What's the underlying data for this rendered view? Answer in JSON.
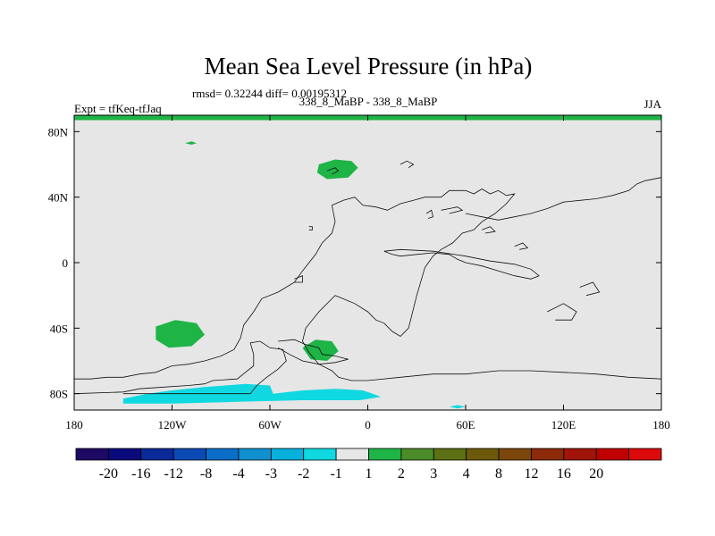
{
  "chart_data": {
    "type": "map",
    "title": "Mean Sea Level Pressure (in hPa)",
    "stats_label": "rmsd= 0.32244 diff= 0.00195312",
    "left_label": "Expt = tfKeq-tfJaq",
    "center_label": "338_8_MaBP - 338_8_MaBP",
    "right_label": "JJA",
    "xlim": [
      -180,
      180
    ],
    "ylim": [
      -90,
      90
    ],
    "x_ticks": [
      {
        "value": -180,
        "label": "180"
      },
      {
        "value": -120,
        "label": "120W"
      },
      {
        "value": -60,
        "label": "60W"
      },
      {
        "value": 0,
        "label": "0"
      },
      {
        "value": 60,
        "label": "60E"
      },
      {
        "value": 120,
        "label": "120E"
      },
      {
        "value": 180,
        "label": "180"
      }
    ],
    "y_ticks": [
      {
        "value": 80,
        "label": "80N"
      },
      {
        "value": 40,
        "label": "40N"
      },
      {
        "value": 0,
        "label": "0"
      },
      {
        "value": -40,
        "label": "40S"
      },
      {
        "value": -80,
        "label": "80S"
      }
    ],
    "background_color": "#e6e6e6",
    "colorbar": {
      "colors": [
        "#1e0a64",
        "#0a0a7c",
        "#0a2a99",
        "#0a4ab4",
        "#0a6ec8",
        "#1090cf",
        "#08b0dc",
        "#10d8e0",
        "#e6e6e6",
        "#1eb446",
        "#4c8c28",
        "#5c7014",
        "#6c5a0a",
        "#7c460a",
        "#8c2a0a",
        "#a0140a",
        "#c00000",
        "#dc0a0a"
      ],
      "labels": [
        "-20",
        "-16",
        "-12",
        "-8",
        "-4",
        "-3",
        "-2",
        "-1",
        "1",
        "2",
        "3",
        "4",
        "8",
        "12",
        "16",
        "20"
      ]
    },
    "fields": [
      {
        "level": "1 to 2",
        "color": "#1eb446",
        "points": [
          [
            -180,
            90
          ],
          [
            180,
            90
          ],
          [
            180,
            87
          ],
          [
            -180,
            87
          ]
        ]
      },
      {
        "level": "1 to 2",
        "color": "#1eb446",
        "points": [
          [
            -112,
            73
          ],
          [
            -108,
            74
          ],
          [
            -105,
            73
          ],
          [
            -108,
            72
          ]
        ]
      },
      {
        "level": "1 to 2",
        "color": "#1eb446",
        "points": [
          [
            -30,
            60
          ],
          [
            -20,
            63
          ],
          [
            -10,
            62
          ],
          [
            -6,
            58
          ],
          [
            -12,
            52
          ],
          [
            -25,
            51
          ],
          [
            -31,
            55
          ]
        ]
      },
      {
        "level": "1 to 2",
        "color": "#1eb446",
        "points": [
          [
            -130,
            -39
          ],
          [
            -118,
            -35
          ],
          [
            -105,
            -37
          ],
          [
            -100,
            -44
          ],
          [
            -108,
            -51
          ],
          [
            -122,
            -52
          ],
          [
            -130,
            -47
          ]
        ]
      },
      {
        "level": "1 to 2",
        "color": "#1eb446",
        "points": [
          [
            -40,
            -52
          ],
          [
            -32,
            -47
          ],
          [
            -22,
            -48
          ],
          [
            -18,
            -54
          ],
          [
            -25,
            -60
          ],
          [
            -35,
            -59
          ]
        ]
      },
      {
        "level": "-2 to -1",
        "color": "#10d8e0",
        "points": [
          [
            -150,
            -83
          ],
          [
            -135,
            -80
          ],
          [
            -120,
            -78
          ],
          [
            -100,
            -76
          ],
          [
            -75,
            -74
          ],
          [
            -60,
            -75
          ],
          [
            -58,
            -80
          ],
          [
            -40,
            -78
          ],
          [
            -20,
            -77
          ],
          [
            -3,
            -78
          ],
          [
            3,
            -80
          ],
          [
            8,
            -82
          ],
          [
            -5,
            -84
          ],
          [
            -40,
            -84
          ],
          [
            -80,
            -85
          ],
          [
            -120,
            -86
          ],
          [
            -150,
            -86
          ]
        ]
      },
      {
        "level": "-2 to -1",
        "color": "#10d8e0",
        "points": [
          [
            50,
            -88
          ],
          [
            55,
            -87
          ],
          [
            60,
            -88
          ],
          [
            55,
            -89
          ]
        ]
      }
    ],
    "coastlines": [
      [
        [
          -180,
          -71
        ],
        [
          -170,
          -71
        ],
        [
          -160,
          -70
        ],
        [
          -150,
          -70
        ],
        [
          -140,
          -68
        ],
        [
          -130,
          -67
        ],
        [
          -120,
          -63
        ],
        [
          -110,
          -62
        ],
        [
          -100,
          -60
        ],
        [
          -90,
          -57
        ],
        [
          -82,
          -53
        ],
        [
          -78,
          -46
        ],
        [
          -76,
          -38
        ],
        [
          -70,
          -30
        ],
        [
          -65,
          -22
        ],
        [
          -55,
          -18
        ],
        [
          -45,
          -12
        ],
        [
          -40,
          -5
        ],
        [
          -32,
          5
        ],
        [
          -28,
          12
        ],
        [
          -22,
          18
        ],
        [
          -20,
          25
        ],
        [
          -22,
          35
        ],
        [
          -15,
          38
        ],
        [
          -8,
          40
        ],
        [
          -3,
          35
        ],
        [
          5,
          34
        ],
        [
          12,
          32
        ],
        [
          20,
          36
        ],
        [
          28,
          38
        ],
        [
          35,
          40
        ],
        [
          45,
          40
        ],
        [
          50,
          44
        ],
        [
          60,
          44
        ],
        [
          65,
          42
        ],
        [
          70,
          45
        ],
        [
          75,
          42
        ],
        [
          80,
          44
        ],
        [
          85,
          41
        ],
        [
          90,
          42
        ],
        [
          85,
          36
        ],
        [
          78,
          30
        ],
        [
          70,
          25
        ],
        [
          65,
          20
        ],
        [
          58,
          18
        ],
        [
          52,
          12
        ],
        [
          45,
          8
        ],
        [
          40,
          4
        ],
        [
          35,
          -3
        ],
        [
          30,
          -20
        ],
        [
          25,
          -40
        ],
        [
          20,
          -45
        ],
        [
          15,
          -42
        ],
        [
          10,
          -37
        ],
        [
          5,
          -35
        ],
        [
          0,
          -30
        ],
        [
          -8,
          -25
        ],
        [
          -20,
          -20
        ],
        [
          -30,
          -30
        ],
        [
          -38,
          -40
        ],
        [
          -40,
          -48
        ],
        [
          -36,
          -55
        ],
        [
          -30,
          -62
        ],
        [
          -22,
          -66
        ],
        [
          -18,
          -70
        ],
        [
          -10,
          -72
        ],
        [
          0,
          -72
        ],
        [
          20,
          -70
        ],
        [
          40,
          -68
        ],
        [
          60,
          -68
        ],
        [
          80,
          -66
        ],
        [
          100,
          -66
        ],
        [
          120,
          -67
        ],
        [
          140,
          -68
        ],
        [
          160,
          -70
        ],
        [
          180,
          -71
        ]
      ],
      [
        [
          -180,
          -80
        ],
        [
          -150,
          -79
        ],
        [
          -140,
          -77
        ],
        [
          -125,
          -76
        ],
        [
          -110,
          -75
        ],
        [
          -100,
          -74
        ],
        [
          -95,
          -72
        ],
        [
          -80,
          -71
        ],
        [
          -75,
          -67
        ],
        [
          -70,
          -63
        ],
        [
          -70,
          -56
        ],
        [
          -72,
          -49
        ],
        [
          -66,
          -48
        ],
        [
          -60,
          -52
        ],
        [
          -52,
          -53
        ],
        [
          -50,
          -60
        ],
        [
          -55,
          -65
        ],
        [
          -62,
          -70
        ],
        [
          -68,
          -75
        ],
        [
          -72,
          -80
        ],
        [
          -90,
          -80
        ],
        [
          -120,
          -80
        ],
        [
          -150,
          -80
        ]
      ],
      [
        [
          -55,
          -48
        ],
        [
          -45,
          -47
        ],
        [
          -38,
          -50
        ],
        [
          -30,
          -52
        ],
        [
          -28,
          -56
        ],
        [
          -20,
          -57
        ],
        [
          -12,
          -59
        ],
        [
          -20,
          -61
        ],
        [
          -30,
          -62
        ],
        [
          -40,
          -60
        ],
        [
          -48,
          -56
        ],
        [
          -55,
          -52
        ]
      ],
      [
        [
          60,
          30
        ],
        [
          70,
          28
        ],
        [
          80,
          26
        ],
        [
          90,
          28
        ],
        [
          100,
          30
        ],
        [
          110,
          33
        ],
        [
          120,
          37
        ],
        [
          130,
          38
        ],
        [
          140,
          39
        ],
        [
          150,
          41
        ],
        [
          160,
          44
        ],
        [
          165,
          48
        ],
        [
          170,
          50
        ],
        [
          180,
          52
        ]
      ],
      [
        [
          10,
          7
        ],
        [
          15,
          5
        ],
        [
          20,
          4
        ],
        [
          30,
          5
        ],
        [
          40,
          6
        ],
        [
          50,
          5
        ],
        [
          55,
          2
        ],
        [
          60,
          0
        ],
        [
          70,
          -2
        ],
        [
          80,
          -5
        ],
        [
          90,
          -8
        ],
        [
          100,
          -10
        ],
        [
          105,
          -8
        ],
        [
          100,
          -4
        ],
        [
          90,
          -1
        ],
        [
          75,
          1
        ],
        [
          60,
          4
        ],
        [
          40,
          7
        ],
        [
          20,
          8
        ],
        [
          10,
          7
        ]
      ],
      [
        [
          -45,
          -10
        ],
        [
          -40,
          -8
        ],
        [
          -40,
          -12
        ],
        [
          -45,
          -12
        ]
      ],
      [
        [
          -25,
          56
        ],
        [
          -20,
          58
        ],
        [
          -18,
          56
        ],
        [
          -22,
          54
        ]
      ],
      [
        [
          -36,
          22
        ],
        [
          -34,
          22
        ],
        [
          -34,
          20
        ],
        [
          -36,
          20
        ]
      ],
      [
        [
          20,
          60
        ],
        [
          24,
          62
        ],
        [
          28,
          60
        ],
        [
          25,
          58
        ]
      ],
      [
        [
          36,
          30
        ],
        [
          39,
          32
        ],
        [
          40,
          28
        ],
        [
          37,
          27
        ]
      ],
      [
        [
          45,
          32
        ],
        [
          55,
          34
        ],
        [
          58,
          32
        ],
        [
          50,
          30
        ]
      ],
      [
        [
          70,
          20
        ],
        [
          75,
          22
        ],
        [
          78,
          19
        ],
        [
          72,
          18
        ]
      ],
      [
        [
          90,
          10
        ],
        [
          95,
          12
        ],
        [
          98,
          9
        ],
        [
          93,
          8
        ]
      ],
      [
        [
          110,
          -30
        ],
        [
          120,
          -25
        ],
        [
          128,
          -30
        ],
        [
          125,
          -35
        ],
        [
          115,
          -35
        ]
      ],
      [
        [
          130,
          -15
        ],
        [
          138,
          -12
        ],
        [
          142,
          -18
        ],
        [
          134,
          -20
        ]
      ]
    ]
  }
}
